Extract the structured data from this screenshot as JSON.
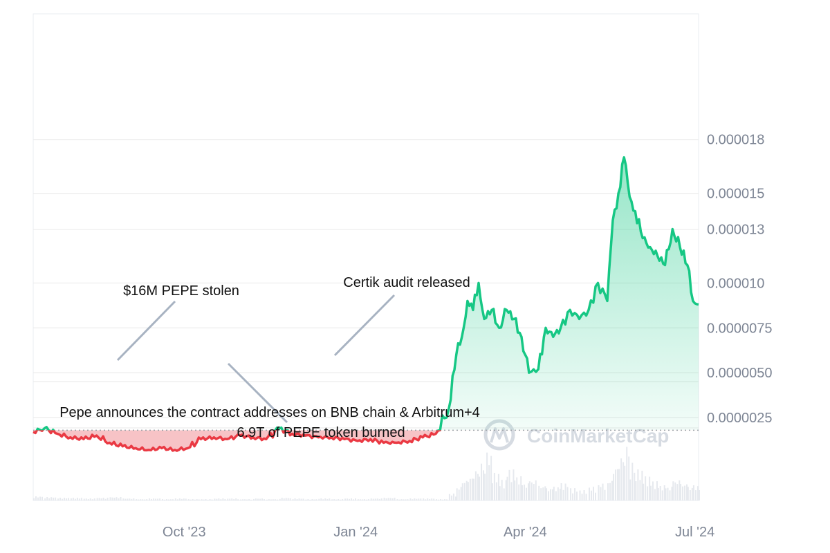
{
  "chart_data": {
    "type": "line",
    "title": "",
    "xlabel": "",
    "ylabel": "",
    "x_ticks": [
      "Oct '23",
      "Jan '24",
      "Apr '24",
      "Jul '24"
    ],
    "y_ticks": [
      "0.0000025",
      "0.0000050",
      "0.0000075",
      "0.000010",
      "0.000013",
      "0.000015",
      "0.000018"
    ],
    "x_range": [
      "2023-07-12",
      "2024-07-03"
    ],
    "y_range": [
      -1.5e-06,
      2.5e-05
    ],
    "baseline": 1.8e-06,
    "colors": {
      "above": "#16c784",
      "below": "#ea3943",
      "above_fill": "#16c784",
      "below_fill": "#f6b8bc",
      "grid": "#ececec",
      "baseline": "#9aa0a6",
      "volume": "#e6e9ee",
      "annotation_line": "#a8b3c2"
    },
    "series": [
      {
        "x": [
          "2023-07-12",
          "2023-07-18",
          "2023-07-25",
          "2023-08-01",
          "2023-08-08",
          "2023-08-15",
          "2023-08-22",
          "2023-08-29",
          "2023-09-05",
          "2023-09-12",
          "2023-09-19",
          "2023-09-26",
          "2023-10-03",
          "2023-10-10",
          "2023-10-17",
          "2023-10-24",
          "2023-10-31",
          "2023-11-07",
          "2023-11-14",
          "2023-11-21",
          "2023-11-28",
          "2023-12-05",
          "2023-12-12",
          "2023-12-19",
          "2023-12-26",
          "2024-01-02",
          "2024-01-09",
          "2024-01-16",
          "2024-01-23",
          "2024-01-30",
          "2024-02-06",
          "2024-02-13",
          "2024-02-20",
          "2024-02-24",
          "2024-02-27",
          "2024-03-01",
          "2024-03-04",
          "2024-03-07",
          "2024-03-10",
          "2024-03-14",
          "2024-03-18",
          "2024-03-22",
          "2024-03-26",
          "2024-03-30",
          "2024-04-03",
          "2024-04-08",
          "2024-04-12",
          "2024-04-16",
          "2024-04-20",
          "2024-04-25",
          "2024-04-30",
          "2024-05-05",
          "2024-05-10",
          "2024-05-15",
          "2024-05-18",
          "2024-05-21",
          "2024-05-24",
          "2024-05-27",
          "2024-05-30",
          "2024-06-03",
          "2024-06-07",
          "2024-06-11",
          "2024-06-15",
          "2024-06-19",
          "2024-06-23",
          "2024-06-27",
          "2024-06-30",
          "2024-07-03"
        ],
        "y": [
          1.7e-06,
          1.9e-06,
          1.6e-06,
          1.4e-06,
          1.3e-06,
          1.5e-06,
          1.1e-06,
          9e-07,
          8e-07,
          7e-07,
          8e-07,
          7e-07,
          8e-07,
          1.3e-06,
          1.4e-06,
          1.3e-06,
          1.5e-06,
          1.4e-06,
          1.3e-06,
          1.9e-06,
          1.6e-06,
          1.5e-06,
          1.4e-06,
          1.4e-06,
          1.3e-06,
          1.2e-06,
          1.3e-06,
          1.1e-06,
          1.1e-06,
          1.2e-06,
          1.4e-06,
          1.6e-06,
          3e-06,
          6e-06,
          7e-06,
          9e-06,
          8.5e-06,
          1e-05,
          8e-06,
          8.5e-06,
          7.5e-06,
          8.5e-06,
          8e-06,
          7e-06,
          5e-06,
          5.2e-06,
          7.5e-06,
          7e-06,
          7.5e-06,
          8.5e-06,
          8e-06,
          8.5e-06,
          1e-05,
          9e-06,
          1.35e-05,
          1.5e-05,
          1.7e-05,
          1.48e-05,
          1.4e-05,
          1.25e-05,
          1.2e-05,
          1.15e-05,
          1.1e-05,
          1.3e-05,
          1.2e-05,
          1.1e-05,
          9e-06,
          8.8e-06
        ]
      }
    ],
    "annotations": [
      {
        "text": "$16M PEPE stolen",
        "x": "2023-09-01"
      },
      {
        "text": "Certik audit released",
        "x": "2023-12-26"
      },
      {
        "text": "Pepe announces the contract addresses on BNB chain & Arbitrum+4",
        "x": "2023-11-01"
      },
      {
        "text": "6.9T of PEPE token burned",
        "x": "2023-11-01"
      }
    ],
    "volume": [
      0.06,
      0.05,
      0.04,
      0.04,
      0.03,
      0.04,
      0.05,
      0.03,
      0.02,
      0.03,
      0.02,
      0.03,
      0.02,
      0.02,
      0.03,
      0.03,
      0.02,
      0.03,
      0.02,
      0.04,
      0.03,
      0.02,
      0.03,
      0.02,
      0.03,
      0.02,
      0.03,
      0.04,
      0.02,
      0.03,
      0.03,
      0.02,
      0.1,
      0.2,
      0.3,
      0.35,
      0.45,
      0.55,
      0.7,
      0.4,
      0.3,
      0.45,
      0.35,
      0.25,
      0.3,
      0.22,
      0.18,
      0.2,
      0.25,
      0.18,
      0.15,
      0.2,
      0.25,
      0.3,
      0.5,
      0.65,
      0.8,
      0.55,
      0.45,
      0.35,
      0.28,
      0.22,
      0.2,
      0.3,
      0.25,
      0.2,
      0.22,
      0.15
    ],
    "watermark": "CoinMarketCap"
  }
}
